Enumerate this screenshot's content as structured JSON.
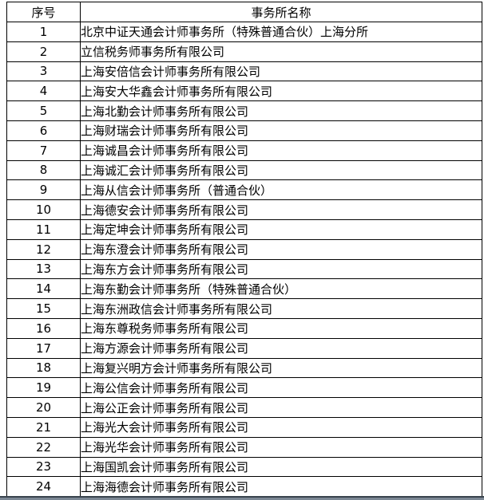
{
  "table": {
    "headers": [
      "序号",
      "事务所名称"
    ],
    "rows": [
      {
        "no": "1",
        "name": "北京中证天通会计师事务所（特殊普通合伙）上海分所"
      },
      {
        "no": "2",
        "name": "立信税务师事务所有限公司"
      },
      {
        "no": "3",
        "name": "上海安倍信会计师事务所有限公司"
      },
      {
        "no": "4",
        "name": "上海安大华鑫会计师事务所有限公司"
      },
      {
        "no": "5",
        "name": "上海北勤会计师事务所有限公司"
      },
      {
        "no": "6",
        "name": "上海财瑞会计师事务所有限公司"
      },
      {
        "no": "7",
        "name": "上海诚昌会计师事务所有限公司"
      },
      {
        "no": "8",
        "name": "上海诚汇会计师事务所有限公司"
      },
      {
        "no": "9",
        "name": "上海从信会计师事务所（普通合伙）"
      },
      {
        "no": "10",
        "name": "上海德安会计师事务所有限公司"
      },
      {
        "no": "11",
        "name": "上海定坤会计师事务所有限公司"
      },
      {
        "no": "12",
        "name": "上海东澄会计师事务所有限公司"
      },
      {
        "no": "13",
        "name": "上海东方会计师事务所有限公司"
      },
      {
        "no": "14",
        "name": "上海东勤会计师事务所（特殊普通合伙）"
      },
      {
        "no": "15",
        "name": "上海东洲政信会计师事务所有限公司"
      },
      {
        "no": "16",
        "name": "上海东尊税务师事务所有限公司"
      },
      {
        "no": "17",
        "name": "上海方源会计师事务所有限公司"
      },
      {
        "no": "18",
        "name": "上海复兴明方会计师事务所有限公司"
      },
      {
        "no": "19",
        "name": "上海公信会计师事务所有限公司"
      },
      {
        "no": "20",
        "name": "上海公正会计师事务所有限公司"
      },
      {
        "no": "21",
        "name": "上海光大会计师事务所有限公司"
      },
      {
        "no": "22",
        "name": "上海光华会计师事务所有限公司"
      },
      {
        "no": "23",
        "name": "上海国凯会计师事务所有限公司"
      },
      {
        "no": "24",
        "name": "上海海德会计师事务所有限公司"
      }
    ]
  },
  "colors": {
    "table_border": "#000000",
    "text": "#000000",
    "background": "#ffffff",
    "bottom_edge_dark": "#39434d",
    "bottom_edge_light": "#7b8794"
  }
}
